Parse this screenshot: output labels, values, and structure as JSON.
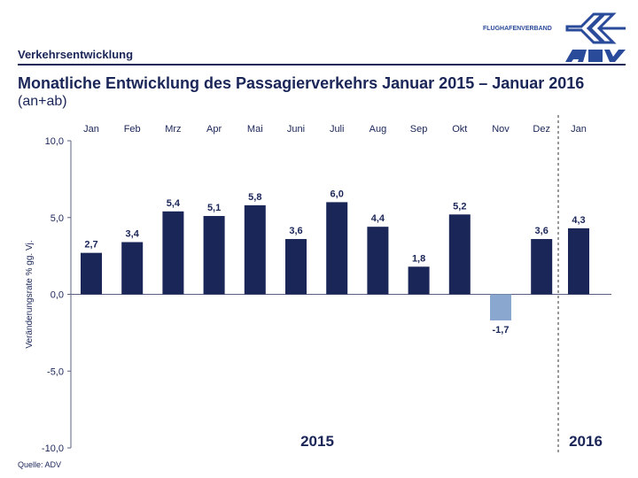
{
  "header": {
    "section": "Verkehrsentwicklung",
    "title": "Monatliche Entwicklung des Passagierverkehrs Januar 2015 – Januar 2016",
    "subtitle": "(an+ab)",
    "brand_text": "FLUGHAFENVERBAND",
    "logo_text": "ADV"
  },
  "footer": {
    "source": "Quelle: ADV"
  },
  "colors": {
    "positive": "#1a2558",
    "negative": "#8aa8cf",
    "axis": "#5a6080"
  },
  "chart_data": {
    "type": "bar",
    "categories": [
      "Jan",
      "Feb",
      "Mrz",
      "Apr",
      "Mai",
      "Juni",
      "Juli",
      "Aug",
      "Sep",
      "Okt",
      "Nov",
      "Dez",
      "Jan"
    ],
    "values": [
      2.7,
      3.4,
      5.4,
      5.1,
      5.8,
      3.6,
      6.0,
      4.4,
      1.8,
      5.2,
      -1.7,
      3.6,
      4.3
    ],
    "labels": [
      "2,7",
      "3,4",
      "5,4",
      "5,1",
      "5,8",
      "3,6",
      "6,0",
      "4,4",
      "1,8",
      "5,2",
      "-1,7",
      "3,6",
      "4,3"
    ],
    "ylabel": "Veränderungsrate % gg. Vj.",
    "ylim": [
      -10,
      10
    ],
    "yticks": [
      10,
      5,
      0,
      -5,
      -10
    ],
    "ytick_labels": [
      "10,0",
      "5,0",
      "0,0",
      "-5,0",
      "-10,0"
    ],
    "groups": [
      "2015",
      "2016"
    ],
    "grid": false,
    "legend": "none"
  }
}
